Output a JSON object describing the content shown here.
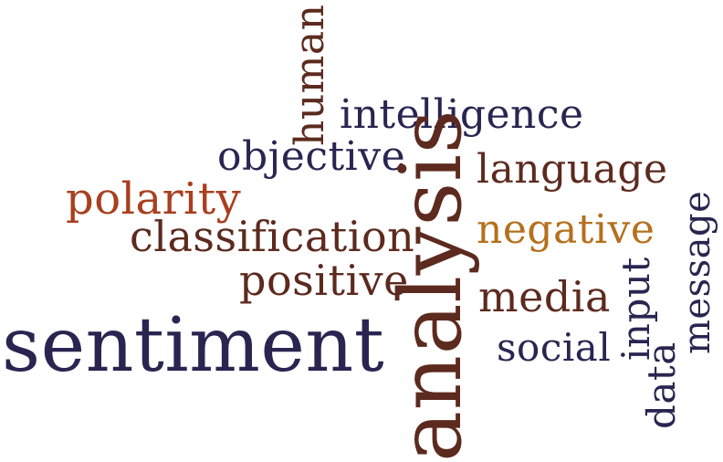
{
  "colors": {
    "navy": "#2a2550",
    "brown": "#5c2a1e",
    "rust": "#a8401f",
    "gold": "#b5701c"
  },
  "words": {
    "sentiment": "sentiment",
    "analysis": "analysis",
    "intelligence": "intelligence",
    "human": "human",
    "objective": "objective",
    "language": "language",
    "polarity": "polarity",
    "classification": "classification",
    "negative": "negative",
    "positive": "positive",
    "media": "media",
    "social": "social",
    "input": "input",
    "data": "data",
    "message": "message"
  }
}
